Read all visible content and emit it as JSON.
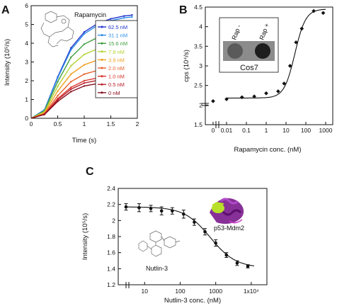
{
  "chart_data": [
    {
      "panel": "A",
      "type": "line",
      "annotation": "Rapamycin",
      "xlabel": "Time (s)",
      "ylabel": "Intensity (10⁵/s)",
      "xlim": [
        0,
        2
      ],
      "ylim": [
        0,
        6
      ],
      "xticks": [
        "0",
        "0.5",
        "1",
        "1.5",
        "2"
      ],
      "yticks": [
        "0",
        "1",
        "2",
        "3",
        "4",
        "5",
        "6"
      ],
      "legend_position": "top-right",
      "x": [
        0,
        0.25,
        0.5,
        0.75,
        1.0,
        1.25,
        1.5,
        1.75,
        1.9
      ],
      "series": [
        {
          "name": "62.5 nM",
          "color": "#2233cc",
          "values": [
            0,
            0.45,
            2.2,
            3.75,
            4.6,
            5.05,
            5.3,
            5.45,
            5.5
          ]
        },
        {
          "name": "31.1 nM",
          "color": "#2b8ce8",
          "values": [
            0,
            0.44,
            2.15,
            3.65,
            4.5,
            4.95,
            5.2,
            5.35,
            5.4
          ]
        },
        {
          "name": "15.6 nM",
          "color": "#3e9e3e",
          "values": [
            0,
            0.4,
            1.95,
            3.25,
            3.95,
            4.3,
            4.5,
            4.6,
            4.6
          ]
        },
        {
          "name": "7.8 nM",
          "color": "#b3d334",
          "values": [
            0,
            0.35,
            1.7,
            2.8,
            3.4,
            3.7,
            3.85,
            3.95,
            3.95
          ]
        },
        {
          "name": "3.9 nM",
          "color": "#f0a020",
          "values": [
            0,
            0.3,
            1.45,
            2.35,
            2.85,
            3.1,
            3.25,
            3.35,
            3.4
          ]
        },
        {
          "name": "2.0 nM",
          "color": "#e8602a",
          "values": [
            0,
            0.25,
            1.2,
            1.95,
            2.35,
            2.55,
            2.7,
            2.78,
            2.8
          ]
        },
        {
          "name": "1.0 nM",
          "color": "#d9342b",
          "values": [
            0,
            0.22,
            1.05,
            1.65,
            2.0,
            2.15,
            2.25,
            2.3,
            2.35
          ]
        },
        {
          "name": "0.5 nM",
          "color": "#b8202a",
          "values": [
            0,
            0.21,
            0.98,
            1.55,
            1.88,
            2.02,
            2.12,
            2.18,
            2.2
          ]
        },
        {
          "name": "0 nM",
          "color": "#8a1020",
          "values": [
            0,
            0.2,
            0.9,
            1.42,
            1.72,
            1.85,
            1.95,
            2.0,
            2.02
          ]
        }
      ]
    },
    {
      "panel": "B",
      "type": "scatter",
      "xlabel": "Rapamycin conc. (nM)",
      "ylabel": "cps (10⁴/s)",
      "xscale": "log",
      "xlim": [
        0.003,
        1000
      ],
      "ylim": [
        1.5,
        4.5
      ],
      "xticks": [
        "0",
        "0.01",
        "0.1",
        "1",
        "10",
        "100",
        "1000"
      ],
      "yticks": [
        "1.5",
        "2",
        "2.5",
        "3",
        "3.5",
        "4",
        "4.5"
      ],
      "points": [
        {
          "x": 0,
          "y": 2.1
        },
        {
          "x": 0.01,
          "y": 2.15
        },
        {
          "x": 0.06,
          "y": 2.2
        },
        {
          "x": 0.25,
          "y": 2.22
        },
        {
          "x": 1,
          "y": 2.3
        },
        {
          "x": 4,
          "y": 2.35
        },
        {
          "x": 8,
          "y": 2.55
        },
        {
          "x": 16,
          "y": 3.0
        },
        {
          "x": 32,
          "y": 3.6
        },
        {
          "x": 62.5,
          "y": 3.95
        },
        {
          "x": 250,
          "y": 4.4
        },
        {
          "x": 750,
          "y": 4.35
        }
      ],
      "inset": {
        "labels": [
          "Rap -",
          "Rap +"
        ],
        "caption": "Cos7"
      }
    },
    {
      "panel": "C",
      "type": "scatter",
      "xlabel": "Nutlin-3 conc. (nM)",
      "ylabel": "Intensity (10⁵/s)",
      "xscale": "log",
      "xlim": [
        3,
        20000
      ],
      "ylim": [
        1.2,
        2.4
      ],
      "xticks": [
        "10",
        "100",
        "1000",
        "1x10⁴"
      ],
      "yticks": [
        "1.2",
        "1.4",
        "1.6",
        "1.8",
        "2",
        "2.2",
        "2.4"
      ],
      "points": [
        {
          "x": 3,
          "y": 2.17,
          "err": 0.04
        },
        {
          "x": 7,
          "y": 2.16,
          "err": 0.05
        },
        {
          "x": 15,
          "y": 2.15,
          "err": 0.04
        },
        {
          "x": 30,
          "y": 2.12,
          "err": 0.05
        },
        {
          "x": 60,
          "y": 2.12,
          "err": 0.04
        },
        {
          "x": 125,
          "y": 2.08,
          "err": 0.05
        },
        {
          "x": 250,
          "y": 1.98,
          "err": 0.04
        },
        {
          "x": 500,
          "y": 1.86,
          "err": 0.04
        },
        {
          "x": 1000,
          "y": 1.72,
          "err": 0.04
        },
        {
          "x": 2000,
          "y": 1.57,
          "err": 0.03
        },
        {
          "x": 4000,
          "y": 1.47,
          "err": 0.03
        },
        {
          "x": 8000,
          "y": 1.43,
          "err": 0.02
        }
      ],
      "annotations": [
        "p53-Mdm2",
        "Nutlin-3"
      ]
    }
  ],
  "panel_labels": [
    "A",
    "B",
    "C"
  ]
}
